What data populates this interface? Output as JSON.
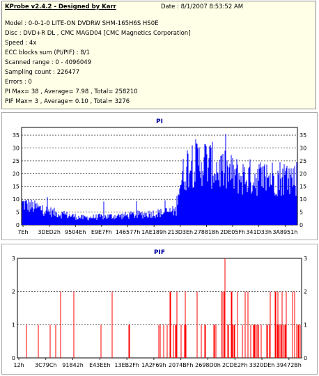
{
  "header": {
    "title": "KProbe v2.4.2 - Designed by Karr",
    "date": "Date : 8/1/2007 8:53:52 AM",
    "lines": [
      "Model : 0-0-1-0 LITE-ON DVDRW SHM-165H6S HS0E",
      "Disc : DVD+R DL , CMC MAGD04 [CMC Magnetics Corporation]",
      "Speed : 4x",
      "ECC blocks sum (PI/PIF) : 8/1",
      "Scanned range : 0 - 4096049",
      "Sampling count : 226477",
      "Errors : 0",
      "PI Max= 38 , Average= 7.98 , Total= 258210",
      "PIF Max= 3 , Average= 0.10 , Total= 3276"
    ]
  },
  "colors": {
    "pi": "#0000ff",
    "pif": "#ff0000",
    "grid": "#000000",
    "title": "#0000a0"
  },
  "chart_data": [
    {
      "type": "bar",
      "title": "PI",
      "ylim": [
        0,
        38
      ],
      "yticks": [
        0,
        5,
        10,
        15,
        20,
        25,
        30,
        35
      ],
      "xticklabels": [
        "7Eh",
        "3DED2h",
        "9504Eh",
        "E9E7Fh",
        "146577h",
        "1AE189h",
        "213D3Eh",
        "278818h",
        "2DE05Fh",
        "341D33h",
        "3A8951h"
      ],
      "xrange": [
        0,
        4096049
      ],
      "profile": [
        {
          "x": 0,
          "y": 9
        },
        {
          "x": 0.12,
          "y": 5
        },
        {
          "x": 0.22,
          "y": 3
        },
        {
          "x": 0.38,
          "y": 4
        },
        {
          "x": 0.5,
          "y": 5
        },
        {
          "x": 0.56,
          "y": 6
        },
        {
          "x": 0.565,
          "y": 15
        },
        {
          "x": 0.6,
          "y": 25
        },
        {
          "x": 0.66,
          "y": 27
        },
        {
          "x": 0.72,
          "y": 23
        },
        {
          "x": 0.8,
          "y": 20
        },
        {
          "x": 0.9,
          "y": 20
        },
        {
          "x": 1.0,
          "y": 20
        }
      ],
      "max": 38,
      "average": 7.98,
      "total": 258210
    },
    {
      "type": "bar",
      "title": "PIF",
      "ylim": [
        0,
        3
      ],
      "yticks": [
        0,
        1,
        2,
        3
      ],
      "xticklabels": [
        "12h",
        "3C79Ch",
        "91842h",
        "E43EEh",
        "13EB2Fh",
        "1A2F69h",
        "2074BFh",
        "2698D0h",
        "2CDE2Fh",
        "3320DEh",
        "39472Bh"
      ],
      "xrange": [
        0,
        4096049
      ],
      "max": 3,
      "average": 0.1,
      "total": 3276
    }
  ]
}
